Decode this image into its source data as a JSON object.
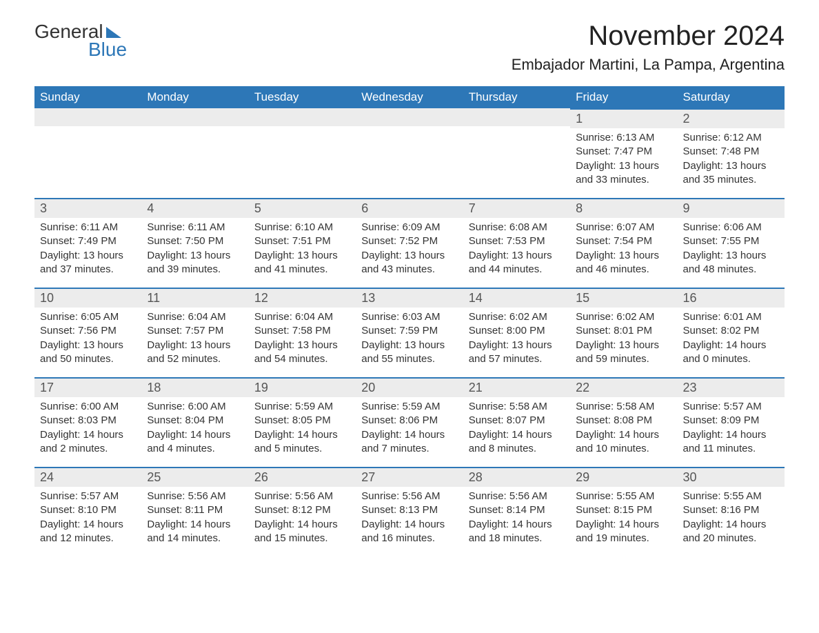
{
  "logo": {
    "word1": "General",
    "word2": "Blue"
  },
  "title": "November 2024",
  "location": "Embajador Martini, La Pampa, Argentina",
  "colors": {
    "header_bg": "#2d77b7",
    "header_text": "#ffffff",
    "daynum_bg": "#ececec",
    "daynum_border": "#2d77b7",
    "body_bg": "#ffffff",
    "text": "#333333",
    "logo_blue": "#2d77b7"
  },
  "typography": {
    "title_fontsize": 40,
    "location_fontsize": 22,
    "weekday_fontsize": 17,
    "daynum_fontsize": 18,
    "body_fontsize": 15
  },
  "weekdays": [
    "Sunday",
    "Monday",
    "Tuesday",
    "Wednesday",
    "Thursday",
    "Friday",
    "Saturday"
  ],
  "weeks": [
    [
      null,
      null,
      null,
      null,
      null,
      {
        "day": 1,
        "sunrise": "6:13 AM",
        "sunset": "7:47 PM",
        "daylight": "13 hours and 33 minutes."
      },
      {
        "day": 2,
        "sunrise": "6:12 AM",
        "sunset": "7:48 PM",
        "daylight": "13 hours and 35 minutes."
      }
    ],
    [
      {
        "day": 3,
        "sunrise": "6:11 AM",
        "sunset": "7:49 PM",
        "daylight": "13 hours and 37 minutes."
      },
      {
        "day": 4,
        "sunrise": "6:11 AM",
        "sunset": "7:50 PM",
        "daylight": "13 hours and 39 minutes."
      },
      {
        "day": 5,
        "sunrise": "6:10 AM",
        "sunset": "7:51 PM",
        "daylight": "13 hours and 41 minutes."
      },
      {
        "day": 6,
        "sunrise": "6:09 AM",
        "sunset": "7:52 PM",
        "daylight": "13 hours and 43 minutes."
      },
      {
        "day": 7,
        "sunrise": "6:08 AM",
        "sunset": "7:53 PM",
        "daylight": "13 hours and 44 minutes."
      },
      {
        "day": 8,
        "sunrise": "6:07 AM",
        "sunset": "7:54 PM",
        "daylight": "13 hours and 46 minutes."
      },
      {
        "day": 9,
        "sunrise": "6:06 AM",
        "sunset": "7:55 PM",
        "daylight": "13 hours and 48 minutes."
      }
    ],
    [
      {
        "day": 10,
        "sunrise": "6:05 AM",
        "sunset": "7:56 PM",
        "daylight": "13 hours and 50 minutes."
      },
      {
        "day": 11,
        "sunrise": "6:04 AM",
        "sunset": "7:57 PM",
        "daylight": "13 hours and 52 minutes."
      },
      {
        "day": 12,
        "sunrise": "6:04 AM",
        "sunset": "7:58 PM",
        "daylight": "13 hours and 54 minutes."
      },
      {
        "day": 13,
        "sunrise": "6:03 AM",
        "sunset": "7:59 PM",
        "daylight": "13 hours and 55 minutes."
      },
      {
        "day": 14,
        "sunrise": "6:02 AM",
        "sunset": "8:00 PM",
        "daylight": "13 hours and 57 minutes."
      },
      {
        "day": 15,
        "sunrise": "6:02 AM",
        "sunset": "8:01 PM",
        "daylight": "13 hours and 59 minutes."
      },
      {
        "day": 16,
        "sunrise": "6:01 AM",
        "sunset": "8:02 PM",
        "daylight": "14 hours and 0 minutes."
      }
    ],
    [
      {
        "day": 17,
        "sunrise": "6:00 AM",
        "sunset": "8:03 PM",
        "daylight": "14 hours and 2 minutes."
      },
      {
        "day": 18,
        "sunrise": "6:00 AM",
        "sunset": "8:04 PM",
        "daylight": "14 hours and 4 minutes."
      },
      {
        "day": 19,
        "sunrise": "5:59 AM",
        "sunset": "8:05 PM",
        "daylight": "14 hours and 5 minutes."
      },
      {
        "day": 20,
        "sunrise": "5:59 AM",
        "sunset": "8:06 PM",
        "daylight": "14 hours and 7 minutes."
      },
      {
        "day": 21,
        "sunrise": "5:58 AM",
        "sunset": "8:07 PM",
        "daylight": "14 hours and 8 minutes."
      },
      {
        "day": 22,
        "sunrise": "5:58 AM",
        "sunset": "8:08 PM",
        "daylight": "14 hours and 10 minutes."
      },
      {
        "day": 23,
        "sunrise": "5:57 AM",
        "sunset": "8:09 PM",
        "daylight": "14 hours and 11 minutes."
      }
    ],
    [
      {
        "day": 24,
        "sunrise": "5:57 AM",
        "sunset": "8:10 PM",
        "daylight": "14 hours and 12 minutes."
      },
      {
        "day": 25,
        "sunrise": "5:56 AM",
        "sunset": "8:11 PM",
        "daylight": "14 hours and 14 minutes."
      },
      {
        "day": 26,
        "sunrise": "5:56 AM",
        "sunset": "8:12 PM",
        "daylight": "14 hours and 15 minutes."
      },
      {
        "day": 27,
        "sunrise": "5:56 AM",
        "sunset": "8:13 PM",
        "daylight": "14 hours and 16 minutes."
      },
      {
        "day": 28,
        "sunrise": "5:56 AM",
        "sunset": "8:14 PM",
        "daylight": "14 hours and 18 minutes."
      },
      {
        "day": 29,
        "sunrise": "5:55 AM",
        "sunset": "8:15 PM",
        "daylight": "14 hours and 19 minutes."
      },
      {
        "day": 30,
        "sunrise": "5:55 AM",
        "sunset": "8:16 PM",
        "daylight": "14 hours and 20 minutes."
      }
    ]
  ],
  "labels": {
    "sunrise_prefix": "Sunrise: ",
    "sunset_prefix": "Sunset: ",
    "daylight_prefix": "Daylight: "
  }
}
